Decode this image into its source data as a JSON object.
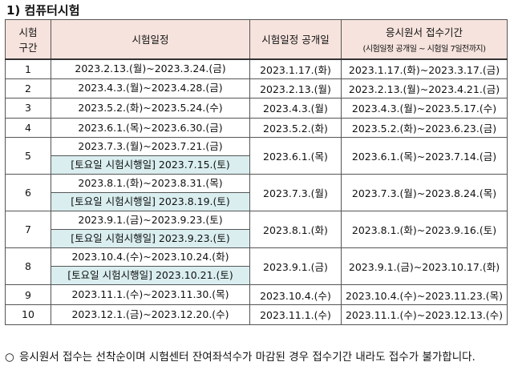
{
  "title": "1) 컴퓨터시험",
  "headers": {
    "round": "시험\n구간",
    "schedule": "시험일정",
    "announce": "시험일정 공개일",
    "apply": "응시원서 접수기간",
    "apply_sub": "(시험일정 공개일 ~ 시험일 7일전까지)"
  },
  "rows": [
    {
      "no": "1",
      "schedule": "2023.2.13.(월)~2023.3.24.(금)",
      "sat": "",
      "announce": "2023.1.17.(화)",
      "apply": "2023.1.17.(화)~2023.3.17.(금)"
    },
    {
      "no": "2",
      "schedule": "2023.4.3.(월)~2023.4.28.(금)",
      "sat": "",
      "announce": "2023.2.13.(월)",
      "apply": "2023.2.13.(월)~2023.4.21.(금)"
    },
    {
      "no": "3",
      "schedule": "2023.5.2.(화)~2023.5.24.(수)",
      "sat": "",
      "announce": "2023.4.3.(월)",
      "apply": "2023.4.3.(월)~2023.5.17.(수)"
    },
    {
      "no": "4",
      "schedule": "2023.6.1.(목)~2023.6.30.(금)",
      "sat": "",
      "announce": "2023.5.2.(화)",
      "apply": "2023.5.2.(화)~2023.6.23.(금)"
    },
    {
      "no": "5",
      "schedule": "2023.7.3.(월)~2023.7.21.(금)",
      "sat": "[토요일 시험시행일] 2023.7.15.(토)",
      "announce": "2023.6.1.(목)",
      "apply": "2023.6.1.(목)~2023.7.14.(금)"
    },
    {
      "no": "6",
      "schedule": "2023.8.1.(화)~2023.8.31.(목)",
      "sat": "[토요일 시험시행일] 2023.8.19.(토)",
      "announce": "2023.7.3.(월)",
      "apply": "2023.7.3.(월)~2023.8.24.(목)"
    },
    {
      "no": "7",
      "schedule": "2023.9.1.(금)~2023.9.23.(토)",
      "sat": "[토요일 시험시행일] 2023.9.23.(토)",
      "announce": "2023.8.1.(화)",
      "apply": "2023.8.1.(화)~2023.9.16.(토)"
    },
    {
      "no": "8",
      "schedule": "2023.10.4.(수)~2023.10.24.(화)",
      "sat": "[토요일 시험시행일] 2023.10.21.(토)",
      "announce": "2023.9.1.(금)",
      "apply": "2023.9.1.(금)~2023.10.17.(화)"
    },
    {
      "no": "9",
      "schedule": "2023.11.1.(수)~2023.11.30.(목)",
      "sat": "",
      "announce": "2023.10.4.(수)",
      "apply": "2023.10.4.(수)~2023.11.23.(목)"
    },
    {
      "no": "10",
      "schedule": "2023.12.1.(금)~2023.12.20.(수)",
      "sat": "",
      "announce": "2023.11.1.(수)",
      "apply": "2023.11.1.(수)~2023.12.13.(수)"
    }
  ],
  "note": {
    "bullet": "○",
    "text": "응시원서 접수는 선착순이며 시험센터 잔여좌석수가 마감된 경우 접수기간 내라도 접수가 불가합니다."
  },
  "colors": {
    "header_bg": "#f6e3dd",
    "saturday_bg": "#daeef0"
  }
}
